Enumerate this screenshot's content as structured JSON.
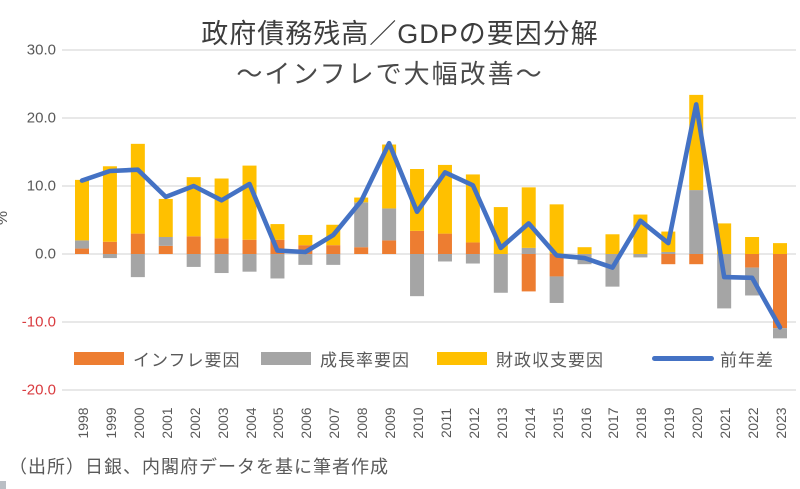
{
  "title": "政府債務残高／GDPの要因分解",
  "subtitle": "〜インフレで大幅改善〜",
  "source_note": "（出所）日銀、内閣府データを基に筆者作成",
  "colors": {
    "inflation_bar": "#ED7D31",
    "growth_bar": "#A5A5A5",
    "fiscal_bar": "#FFC000",
    "line": "#4472C4",
    "gridline": "#D9D9D9",
    "axis_label": "#595959",
    "negative_axis_label": "#D93B3F"
  },
  "chart_data": {
    "type": "bar",
    "subtype": "stacked-bars-with-line-overlay",
    "categories": [
      1998,
      1999,
      2000,
      2001,
      2002,
      2003,
      2004,
      2005,
      2006,
      2007,
      2008,
      2009,
      2010,
      2011,
      2012,
      2013,
      2014,
      2015,
      2016,
      2017,
      2018,
      2019,
      2020,
      2021,
      2022,
      2023
    ],
    "series": [
      {
        "name": "インフレ要因",
        "type": "bar",
        "color": "#ED7D31",
        "values": [
          0.8,
          1.8,
          3.0,
          1.2,
          2.6,
          2.3,
          2.1,
          2.1,
          1.3,
          1.3,
          1.0,
          2.0,
          3.4,
          3.0,
          1.7,
          0.0,
          -5.5,
          -3.3,
          0.0,
          0.0,
          0.0,
          -1.5,
          -1.5,
          0.0,
          -2.0,
          -10.9
        ]
      },
      {
        "name": "成長率要因",
        "type": "bar",
        "color": "#A5A5A5",
        "values": [
          1.2,
          -0.6,
          -3.4,
          1.3,
          -1.9,
          -2.8,
          -2.6,
          -3.6,
          -1.6,
          -1.6,
          6.6,
          4.7,
          -6.2,
          -1.1,
          -1.4,
          -5.7,
          0.9,
          -3.9,
          -1.5,
          -4.8,
          -0.5,
          0.3,
          9.4,
          -8.0,
          -4.1,
          -1.5
        ]
      },
      {
        "name": "財政収支要因",
        "type": "bar",
        "color": "#FFC000",
        "values": [
          8.9,
          11.1,
          13.2,
          5.6,
          8.7,
          8.8,
          10.9,
          2.3,
          1.5,
          3.0,
          0.7,
          9.4,
          9.1,
          10.1,
          10.0,
          6.9,
          8.9,
          7.3,
          1.0,
          2.9,
          5.8,
          3.0,
          14.0,
          4.5,
          2.5,
          1.6
        ]
      },
      {
        "name": "前年差",
        "type": "line",
        "color": "#4472C4",
        "values": [
          10.8,
          12.2,
          12.4,
          8.4,
          10.0,
          7.9,
          10.3,
          0.5,
          0.3,
          2.8,
          7.8,
          16.3,
          6.2,
          12.0,
          10.1,
          0.9,
          4.5,
          -0.2,
          -0.6,
          -2.0,
          4.9,
          1.6,
          22.0,
          -3.4,
          -3.5,
          -10.8
        ]
      }
    ],
    "ylabel": "%",
    "ylim": [
      -20,
      30
    ],
    "y_ticks": [
      {
        "label": "30.0",
        "value": 30
      },
      {
        "label": "20.0",
        "value": 20
      },
      {
        "label": "10.0",
        "value": 10
      },
      {
        "label": "0.0",
        "value": 0
      },
      {
        "label": "-10.0",
        "value": -10
      },
      {
        "label": "-20.0",
        "value": -20
      }
    ],
    "grid": true,
    "legend_position": "bottom"
  }
}
